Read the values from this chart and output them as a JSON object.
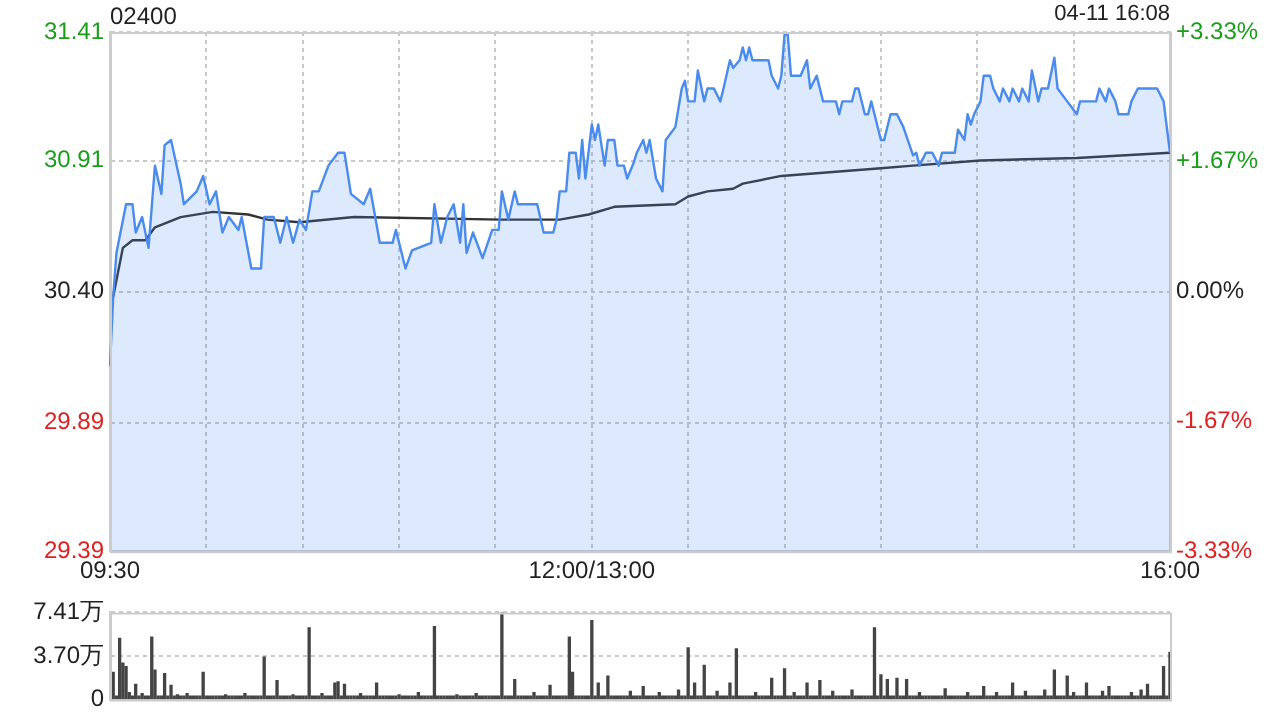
{
  "chart_data": [
    {
      "type": "line",
      "title": "02400",
      "annotations": [
        "04-11 16:08"
      ],
      "categories": [
        "09:30",
        null,
        null,
        null,
        null,
        null,
        null,
        null,
        null,
        null,
        null,
        null,
        null,
        null,
        null,
        null,
        null,
        null,
        null,
        null,
        null,
        null,
        null,
        null,
        null,
        null,
        null,
        null,
        null,
        null,
        null,
        null,
        null,
        null,
        null,
        null,
        null,
        null,
        null,
        null,
        null,
        null,
        null,
        null,
        null,
        null,
        null,
        null,
        null,
        null,
        null,
        null,
        null,
        null,
        null,
        null,
        null,
        null,
        null,
        null,
        null,
        null,
        null,
        null,
        null,
        null,
        null,
        null,
        null,
        null,
        null,
        null,
        null,
        null,
        null,
        null,
        null,
        null,
        null,
        null,
        null,
        null,
        null,
        null,
        null,
        null,
        null,
        null,
        null,
        null,
        null,
        null,
        null,
        null,
        null,
        null,
        null,
        null,
        null,
        null,
        null,
        null,
        null,
        null,
        null,
        null,
        null,
        null,
        null,
        null,
        null,
        null,
        null,
        null,
        null,
        null,
        null,
        null,
        null,
        null,
        null,
        null,
        null,
        null,
        null,
        null,
        null,
        null,
        null,
        null,
        null,
        null,
        null,
        null,
        null,
        null,
        null,
        null,
        null,
        null,
        null,
        null,
        null,
        null,
        null,
        null,
        null,
        null,
        null,
        null,
        "12:00/13:00",
        null,
        null,
        null,
        null,
        null,
        null,
        null,
        null,
        null,
        null,
        null,
        null,
        null,
        null,
        null,
        null,
        null,
        null,
        null,
        null,
        null,
        null,
        null,
        null,
        null,
        null,
        null,
        null,
        null,
        null,
        null,
        null,
        null,
        null,
        null,
        null,
        null,
        null,
        null,
        null,
        null,
        null,
        null,
        null,
        null,
        null,
        null,
        null,
        null,
        null,
        null,
        null,
        null,
        null,
        null,
        null,
        null,
        null,
        null,
        null,
        null,
        null,
        null,
        null,
        null,
        null,
        null,
        null,
        null,
        null,
        null,
        null,
        null,
        null,
        null,
        null,
        null,
        null,
        null,
        null,
        null,
        null,
        null,
        null,
        null,
        null,
        null,
        null,
        null,
        null,
        null,
        null,
        null,
        null,
        null,
        null,
        null,
        null,
        null,
        null,
        null,
        null,
        null,
        null,
        null,
        null,
        null,
        null,
        null,
        null,
        null,
        null,
        null,
        null,
        null,
        null,
        null,
        null,
        null,
        null,
        null,
        null,
        null,
        null,
        null,
        null,
        null,
        null,
        null,
        null,
        null,
        null,
        null,
        null,
        null,
        null,
        null,
        null,
        null,
        null,
        null,
        null,
        null,
        null,
        null,
        null,
        null,
        null,
        null,
        null,
        null,
        null,
        null,
        null,
        null,
        null,
        null,
        null,
        null,
        null,
        null,
        null,
        null,
        null,
        null,
        null,
        null,
        null,
        null,
        null,
        null,
        null,
        null,
        null,
        null,
        null,
        null,
        null,
        null,
        "16:00"
      ],
      "series": [
        {
          "type": "area",
          "color": "#4a8bee",
          "values": [
            30.11,
            30.38,
            30.55,
            null,
            null,
            30.74,
            null,
            30.74,
            30.63,
            null,
            30.69,
            null,
            30.57,
            null,
            30.89,
            null,
            30.78,
            30.97,
            null,
            30.99,
            null,
            null,
            30.82,
            30.74,
            null,
            null,
            null,
            30.79,
            null,
            30.85,
            null,
            30.74,
            null,
            30.79,
            null,
            30.63,
            null,
            30.69,
            null,
            null,
            30.64,
            30.69,
            null,
            null,
            30.49,
            null,
            null,
            30.49,
            30.69,
            null,
            null,
            30.69,
            null,
            30.59,
            null,
            30.69,
            null,
            30.59,
            null,
            30.68,
            null,
            30.64,
            null,
            30.79,
            null,
            30.79,
            null,
            null,
            30.89,
            null,
            null,
            30.94,
            null,
            30.94,
            null,
            30.78,
            null,
            null,
            null,
            30.74,
            null,
            30.8,
            null,
            null,
            30.59,
            null,
            null,
            null,
            30.59,
            30.64,
            null,
            null,
            30.49,
            null,
            30.56,
            null,
            null,
            null,
            null,
            null,
            30.59,
            30.74,
            null,
            30.59,
            null,
            30.69,
            null,
            30.74,
            null,
            30.59,
            30.74,
            30.55,
            null,
            30.63,
            null,
            null,
            30.53,
            null,
            null,
            30.64,
            null,
            30.64,
            30.79,
            null,
            30.68,
            null,
            30.79,
            30.74,
            null,
            null,
            null,
            null,
            null,
            30.74,
            null,
            30.63,
            null,
            null,
            30.63,
            30.68,
            30.79,
            null,
            30.79,
            30.94,
            null,
            30.94,
            30.84,
            30.99,
            30.84,
            null,
            31.05,
            30.99,
            31.05,
            null,
            30.89,
            30.99,
            null,
            30.99,
            30.89,
            null,
            30.89,
            30.84,
            null,
            30.9,
            30.94,
            null,
            30.99,
            30.94,
            30.99,
            null,
            30.84,
            null,
            30.79,
            30.99,
            null,
            null,
            31.04,
            null,
            31.19,
            31.22,
            31.14,
            null,
            31.14,
            31.26,
            null,
            31.14,
            31.19,
            null,
            31.19,
            null,
            31.14,
            31.19,
            null,
            31.3,
            31.27,
            null,
            31.3,
            31.35,
            31.3,
            31.35,
            31.3,
            null,
            null,
            null,
            null,
            31.3,
            31.24,
            null,
            31.19,
            31.24,
            31.4,
            31.4,
            31.24,
            null,
            null,
            31.24,
            null,
            31.3,
            31.19,
            null,
            31.24,
            null,
            31.14,
            null,
            null,
            null,
            31.14,
            31.09,
            31.14,
            null,
            null,
            31.14,
            31.19,
            31.19,
            null,
            31.09,
            31.09,
            31.14,
            31.09,
            null,
            30.99,
            30.99,
            null,
            31.09,
            null,
            31.09,
            null,
            31.04,
            null,
            null,
            30.93,
            30.94,
            30.89,
            null,
            30.94,
            null,
            30.94,
            null,
            30.89,
            30.94,
            null,
            null,
            null,
            30.94,
            31.03,
            null,
            30.99,
            31.09,
            31.05,
            31.09,
            null,
            31.14,
            31.24,
            null,
            31.24,
            31.19,
            null,
            31.14,
            31.19,
            null,
            31.14,
            31.19,
            null,
            31.14,
            31.19,
            null,
            31.14,
            31.26,
            null,
            31.14,
            31.19,
            null,
            31.19,
            null,
            31.31,
            31.19,
            null,
            null,
            31.14,
            null,
            null,
            31.09,
            31.14,
            null,
            null,
            null,
            null,
            31.14,
            31.19,
            null,
            31.14,
            31.19,
            null,
            31.14,
            31.09,
            null,
            null,
            31.09,
            31.14,
            null,
            31.19,
            null,
            null,
            null,
            null,
            null,
            31.19,
            null,
            31.14,
            null,
            30.94
          ]
        },
        {
          "type": "line",
          "color": "#333333",
          "values": [
            null,
            30.38,
            null,
            null,
            30.57,
            null,
            null,
            30.6,
            null,
            null,
            null,
            30.6,
            null,
            null,
            30.65,
            null,
            null,
            null,
            null,
            null,
            null,
            null,
            30.69,
            null,
            null,
            null,
            null,
            null,
            null,
            null,
            null,
            null,
            30.71,
            null,
            null,
            null,
            null,
            null,
            null,
            null,
            null,
            null,
            null,
            30.7,
            null,
            null,
            null,
            null,
            null,
            30.68,
            null,
            null,
            null,
            null,
            null,
            null,
            null,
            null,
            null,
            30.67,
            null,
            null,
            null,
            null,
            null,
            null,
            null,
            null,
            null,
            null,
            null,
            null,
            null,
            null,
            null,
            null,
            30.69,
            null,
            null,
            null,
            null,
            null,
            null,
            null,
            null,
            null,
            null,
            null,
            null,
            null,
            null,
            null,
            null,
            null,
            null,
            null,
            null,
            null,
            null,
            null,
            null,
            null,
            null,
            null,
            null,
            null,
            null,
            null,
            null,
            null,
            null,
            null,
            null,
            null,
            null,
            null,
            null,
            null,
            null,
            null,
            null,
            null,
            30.68,
            null,
            null,
            null,
            null,
            null,
            null,
            null,
            null,
            null,
            null,
            null,
            null,
            null,
            null,
            null,
            null,
            null,
            30.68,
            null,
            null,
            null,
            null,
            null,
            null,
            null,
            null,
            30.7,
            null,
            null,
            null,
            null,
            null,
            null,
            null,
            30.73,
            null,
            null,
            null,
            null,
            null,
            null,
            null,
            null,
            null,
            null,
            null,
            null,
            null,
            null,
            null,
            null,
            null,
            null,
            30.74,
            null,
            null,
            null,
            30.77,
            null,
            null,
            null,
            null,
            null,
            30.79,
            null,
            null,
            null,
            null,
            null,
            null,
            null,
            30.8,
            null,
            null,
            30.82,
            null,
            null,
            null,
            null,
            null,
            null,
            null,
            null,
            null,
            null,
            null,
            30.85,
            null,
            null,
            null,
            null,
            null,
            null,
            null,
            null,
            null,
            null,
            null,
            null,
            null,
            null,
            null,
            null,
            null,
            null,
            null,
            null,
            null,
            null,
            null,
            null,
            null,
            null,
            null,
            null,
            null,
            null,
            30.88,
            null,
            null,
            null,
            null,
            null,
            null,
            null,
            null,
            null,
            30.89,
            null,
            null,
            null,
            null,
            null,
            null,
            null,
            null,
            null,
            null,
            null,
            null,
            null,
            null,
            null,
            null,
            null,
            null,
            null,
            null,
            30.91,
            null,
            null,
            null,
            null,
            null,
            null,
            null,
            null,
            null,
            null,
            null,
            null,
            null,
            null,
            null,
            null,
            null,
            null,
            null,
            null,
            null,
            null,
            null,
            null,
            null,
            null,
            null,
            null,
            null,
            30.92,
            null,
            null,
            null,
            null,
            null,
            null,
            null,
            null,
            null,
            null,
            null,
            null,
            null,
            null,
            null,
            null,
            null,
            null,
            null,
            null,
            null,
            null,
            null,
            null,
            null,
            null,
            null,
            null,
            30.94
          ]
        }
      ],
      "ylim": [
        29.39,
        31.41
      ],
      "yticks": [
        29.39,
        29.89,
        {
          "value": 30.4,
          "label": "30.40"
        },
        30.91,
        31.41
      ],
      "y2lim": [
        -3.33,
        3.33
      ],
      "y2ticks": [
        {
          "value": -3.33,
          "label": "-3.33%"
        },
        {
          "value": -1.67,
          "label": "-1.67%"
        },
        {
          "value": 0,
          "label": "0.00%"
        },
        {
          "value": 1.67,
          "label": "+1.67%"
        },
        {
          "value": 3.33,
          "label": "+3.33%"
        }
      ],
      "grid": true,
      "legend": false
    },
    {
      "type": "bar",
      "color": "#444444",
      "categories": [
        null,
        null,
        null,
        null,
        null,
        null,
        null,
        null,
        null,
        null,
        null,
        null,
        null,
        null,
        null,
        null,
        null,
        null,
        null,
        null,
        null,
        null,
        null,
        null,
        null,
        null,
        null,
        null,
        null,
        null,
        null,
        null,
        null,
        null,
        null,
        null,
        null,
        null,
        null,
        null,
        null,
        null,
        null,
        null,
        null,
        null,
        null,
        null,
        null,
        null,
        null,
        null,
        null,
        null,
        null,
        null,
        null,
        null,
        null,
        null,
        null,
        null,
        null,
        null,
        null,
        null,
        null,
        null,
        null,
        null,
        null,
        null,
        null,
        null,
        null,
        null,
        null,
        null,
        null,
        null,
        null,
        null,
        null,
        null,
        null,
        null,
        null,
        null,
        null,
        null,
        null,
        null,
        null,
        null,
        null,
        null,
        null,
        null,
        null,
        null,
        null,
        null,
        null,
        null,
        null,
        null,
        null,
        null,
        null,
        null,
        null,
        null,
        null,
        null,
        null,
        null,
        null,
        null,
        null,
        null,
        null,
        null,
        null,
        null,
        null,
        null,
        null,
        null,
        null,
        null,
        null,
        null,
        null,
        null,
        null,
        null,
        null,
        null,
        null,
        null,
        null,
        null,
        null,
        null,
        null,
        null,
        null,
        null,
        null,
        null,
        null,
        null,
        null,
        null,
        null,
        null,
        null,
        null,
        null,
        null,
        null,
        null,
        null,
        null,
        null,
        null,
        null,
        null,
        null,
        null,
        null,
        null,
        null,
        null,
        null,
        null,
        null,
        null,
        null,
        null,
        null,
        null,
        null,
        null,
        null,
        null,
        null,
        null,
        null,
        null,
        null,
        null,
        null,
        null,
        null,
        null,
        null,
        null,
        null,
        null,
        null,
        null,
        null,
        null,
        null,
        null,
        null,
        null,
        null,
        null,
        null,
        null,
        null,
        null,
        null,
        null,
        null,
        null,
        null,
        null,
        null,
        null,
        null,
        null,
        null,
        null,
        null,
        null,
        null,
        null,
        null,
        null,
        null,
        null,
        null,
        null,
        null,
        null,
        null,
        null,
        null,
        null,
        null,
        null,
        null,
        null,
        null,
        null,
        null,
        null,
        null,
        null,
        null,
        null,
        null,
        null,
        null,
        null,
        null,
        null,
        null,
        null,
        null,
        null,
        null,
        null,
        null,
        null,
        null,
        null,
        null,
        null,
        null,
        null,
        null,
        null,
        null,
        null,
        null,
        null,
        null,
        null,
        null,
        null,
        null,
        null,
        null,
        null,
        null,
        null,
        null,
        null,
        null,
        null,
        null,
        null,
        null,
        null,
        null,
        null,
        null,
        null,
        null,
        null,
        null,
        null,
        null,
        null,
        null,
        null,
        null,
        null,
        null,
        null,
        null,
        null,
        null,
        null,
        null,
        null,
        null,
        null,
        null,
        null,
        null,
        null,
        null,
        null,
        null,
        null,
        null
      ],
      "values": [
        null,
        2.3,
        0.3,
        5.2,
        3.1,
        2.8,
        0.6,
        0.3,
        1.3,
        0.3,
        0.5,
        0.3,
        0.3,
        5.3,
        2.5,
        0.3,
        0.3,
        2.2,
        0.3,
        1.2,
        0.3,
        0.4,
        0.3,
        0.3,
        0.5,
        0.3,
        0.3,
        0.3,
        0.3,
        2.3,
        0.3,
        0.3,
        0.3,
        0.3,
        0.3,
        0.3,
        0.4,
        0.3,
        0.3,
        0.3,
        0.3,
        0.3,
        0.5,
        0.3,
        0.3,
        0.3,
        0.3,
        0.3,
        3.6,
        0.3,
        0.3,
        0.3,
        1.6,
        0.3,
        0.3,
        0.3,
        0.3,
        0.4,
        0.3,
        0.3,
        0.3,
        0.3,
        6.1,
        0.3,
        0.3,
        0.3,
        0.5,
        0.3,
        0.3,
        0.3,
        1.4,
        1.5,
        0.3,
        1.3,
        0.3,
        0.3,
        0.3,
        0.3,
        0.5,
        0.3,
        0.3,
        0.3,
        0.3,
        1.4,
        0.3,
        0.3,
        0.3,
        0.3,
        0.3,
        0.3,
        0.4,
        0.3,
        0.3,
        0.3,
        0.3,
        0.3,
        0.6,
        0.3,
        0.3,
        0.3,
        0.3,
        6.2,
        0.3,
        0.3,
        0.3,
        0.3,
        0.3,
        0.3,
        0.4,
        0.3,
        0.3,
        0.3,
        0.3,
        0.3,
        0.5,
        0.3,
        0.3,
        0.3,
        0.3,
        0.3,
        0.3,
        0.3,
        7.4,
        0.3,
        0.3,
        0.3,
        1.7,
        0.3,
        0.3,
        0.3,
        0.3,
        0.3,
        0.6,
        0.3,
        0.3,
        0.3,
        0.3,
        1.2,
        0.3,
        0.3,
        0.3,
        0.3,
        0.3,
        5.3,
        2.3,
        0.3,
        0.3,
        0.3,
        0.3,
        0.3,
        6.7,
        0.3,
        1.4,
        0.3,
        0.3,
        2,
        0.3,
        0.3,
        0.3,
        0.3,
        0.3,
        0.3,
        0.7,
        0.3,
        0.3,
        0.3,
        1.1,
        0.3,
        0.3,
        0.3,
        0.3,
        0.6,
        0.3,
        0.3,
        0.3,
        0.3,
        0.3,
        0.8,
        0.3,
        0.3,
        4.4,
        0.3,
        1.4,
        0.3,
        0.3,
        2.9,
        0.3,
        0.3,
        0.3,
        0.7,
        0.3,
        0.3,
        0.3,
        1.4,
        0.3,
        4.3,
        0.3,
        0.3,
        0.3,
        0.3,
        0.3,
        0.6,
        0.3,
        0.3,
        0.3,
        0.3,
        1.8,
        0.3,
        0.3,
        0.3,
        2.6,
        0.3,
        0.3,
        0.6,
        0.3,
        0.3,
        0.3,
        1.4,
        0.3,
        0.3,
        0.3,
        1.6,
        0.3,
        0.3,
        0.3,
        0.7,
        0.3,
        0.3,
        0.3,
        0.3,
        0.3,
        0.8,
        0.3,
        0.3,
        0.3,
        0.3,
        0.3,
        0.3,
        6.1,
        0.3,
        2.1,
        0.3,
        1.7,
        0.3,
        0.3,
        1.8,
        0.3,
        0.3,
        1.7,
        0.3,
        0.3,
        0.3,
        0.6,
        0.3,
        0.3,
        0.3,
        0.3,
        0.3,
        0.3,
        0.3,
        0.9,
        0.3,
        0.3,
        0.3,
        0.3,
        0.3,
        0.3,
        0.6,
        0.3,
        0.3,
        0.3,
        0.3,
        1.1,
        0.3,
        0.3,
        0.3,
        0.6,
        0.3,
        0.3,
        0.3,
        0.3,
        1.4,
        0.3,
        0.3,
        0.3,
        0.7,
        0.3,
        0.3,
        0.3,
        0.3,
        0.3,
        0.8,
        0.3,
        0.3,
        2.5,
        0.3,
        0.3,
        0.3,
        2,
        0.3,
        0.6,
        0.3,
        0.3,
        0.3,
        1.4,
        0.3,
        0.3,
        0.3,
        0.3,
        0.7,
        0.3,
        1.1,
        0.3,
        0.3,
        0.3,
        0.3,
        0.3,
        0.3,
        0.6,
        0.3,
        0.3,
        0.8,
        0.3,
        1.3,
        0.3,
        0.3,
        0.3,
        0.3,
        2.8,
        0.3,
        4
      ],
      "ylim": [
        0,
        7.41
      ],
      "yticks": [
        0,
        {
          "value": 3.7,
          "label": "3.70万"
        },
        {
          "value": 7.41,
          "label": "7.41万"
        }
      ],
      "tick_labels": "y",
      "grid": "y",
      "legend": false
    }
  ]
}
